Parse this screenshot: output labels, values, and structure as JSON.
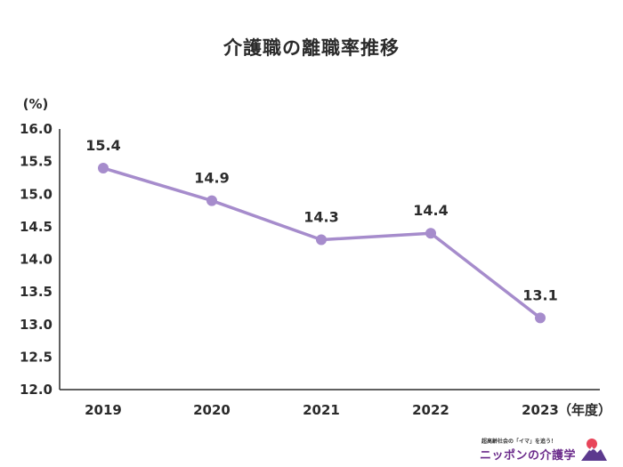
{
  "chart_data": {
    "type": "line",
    "title": "介護職の離職率推移",
    "ylabel": "(%)",
    "xlabel": "（年度）",
    "categories": [
      "2019",
      "2020",
      "2021",
      "2022",
      "2023"
    ],
    "series": [
      {
        "values": [
          15.4,
          14.9,
          14.3,
          14.4,
          13.1
        ],
        "color": "#a68ccc"
      }
    ],
    "data_labels": [
      "15.4",
      "14.9",
      "14.3",
      "14.4",
      "13.1"
    ],
    "ylim": [
      12.0,
      16.0
    ],
    "yticks": [
      "12.0",
      "12.5",
      "13.0",
      "13.5",
      "14.0",
      "14.5",
      "15.0",
      "15.5",
      "16.0"
    ],
    "grid": false
  },
  "logo": {
    "tagline": "超高齢社会の「イマ」を追う！",
    "name": "ニッポンの介護学"
  }
}
